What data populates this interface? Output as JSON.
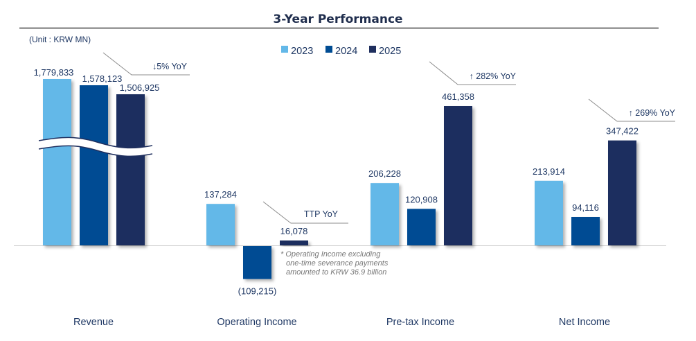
{
  "chart_data": {
    "type": "bar",
    "title": "3-Year Performance",
    "unit_label": "(Unit : KRW MN)",
    "categories": [
      "Revenue",
      "Operating Income",
      "Pre-tax Income",
      "Net Income"
    ],
    "series": [
      {
        "name": "2023",
        "color": "#63b8e8",
        "values": [
          1779833,
          137284,
          206228,
          213914
        ],
        "labels": [
          "1,779,833",
          "137,284",
          "206,228",
          "213,914"
        ]
      },
      {
        "name": "2024",
        "color": "#004c93",
        "values": [
          1578123,
          -109215,
          120908,
          94116
        ],
        "labels": [
          "1,578,123",
          "(109,215)",
          "120,908",
          "94,116"
        ]
      },
      {
        "name": "2025",
        "color": "#1f2f5e",
        "values": [
          1506925,
          16078,
          461358,
          347422
        ],
        "labels": [
          "1,506,925",
          "16,078",
          "461,358",
          "347,422"
        ]
      }
    ],
    "axis_break_category": "Revenue",
    "annotations": [
      {
        "category": "Revenue",
        "text": "↓5% YoY"
      },
      {
        "category": "Operating Income",
        "text": "TTP YoY"
      },
      {
        "category": "Pre-tax Income",
        "text": "↑ 282% YoY"
      },
      {
        "category": "Net Income",
        "text": "↑ 269% YoY"
      }
    ],
    "footnote": [
      "* Operating Income excluding",
      "one-time severance payments",
      "amounted to KRW 36.9 billion"
    ],
    "legend_position": "top-center",
    "grid": false,
    "xlabel": "",
    "ylabel": ""
  }
}
